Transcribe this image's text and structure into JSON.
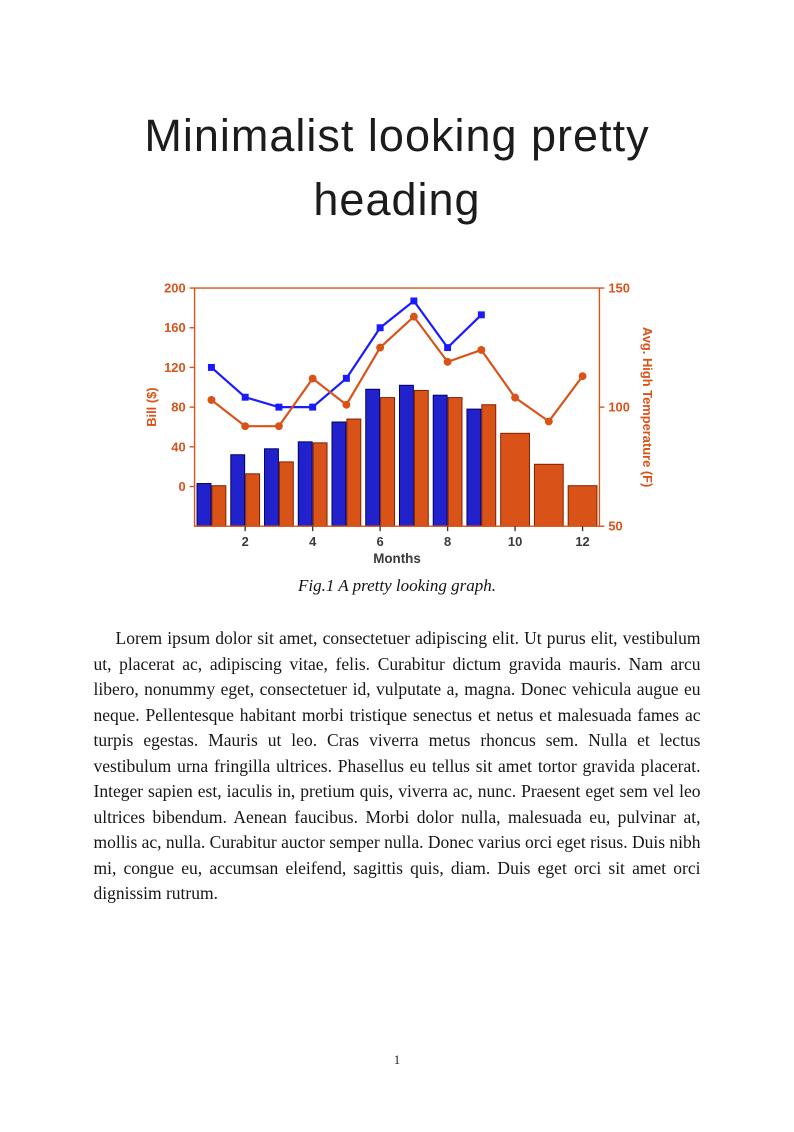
{
  "page": {
    "heading_line1": "Minimalist looking pretty",
    "heading_line2": "heading",
    "body": "Lorem ipsum dolor sit amet, consectetuer adipiscing elit. Ut purus elit, vestibulum ut, placerat ac, adipiscing vitae, felis. Curabitur dictum gravida mauris. Nam arcu libero, nonummy eget, consectetuer id, vulputate a, magna. Donec vehicula augue eu neque. Pellentesque habitant morbi tristique senectus et netus et malesuada fames ac turpis egestas. Mauris ut leo. Cras viverra metus rhoncus sem. Nulla et lectus vestibulum urna fringilla ultrices. Phasellus eu tellus sit amet tortor gravida placerat. Integer sapien est, iaculis in, pretium quis, viverra ac, nunc. Praesent eget sem vel leo ultrices bibendum. Aenean faucibus. Morbi dolor nulla, malesuada eu, pulvinar at, mollis ac, nulla. Curabitur auctor semper nulla. Donec varius orci eget risus. Duis nibh mi, congue eu, accumsan eleifend, sagittis quis, diam. Duis eget orci sit amet orci dignissim rutrum.",
    "page_number": "1"
  },
  "figure": {
    "caption": "Fig.1 A pretty looking graph."
  },
  "chart_data": {
    "type": "bar",
    "x": [
      1,
      2,
      3,
      4,
      5,
      6,
      7,
      8,
      9,
      10,
      11,
      12
    ],
    "xlabel": "Months",
    "xticks": [
      2,
      4,
      6,
      8,
      10,
      12
    ],
    "axes": {
      "left": {
        "label": "Bill ($)",
        "range": [
          -40,
          200
        ],
        "ticks": [
          0,
          40,
          80,
          120,
          160,
          200
        ],
        "color": "#d95319"
      },
      "right": {
        "label": "Avg. High Temperature (F)",
        "range": [
          50,
          150
        ],
        "ticks": [
          50,
          100,
          150
        ],
        "color": "#d95319"
      }
    },
    "series": [
      {
        "name": "bill-bars",
        "type": "bar",
        "axis": "left",
        "fill": "#2222cc",
        "stroke": "#000066",
        "values": [
          3,
          32,
          38,
          45,
          65,
          98,
          102,
          92,
          78,
          null,
          null,
          null
        ]
      },
      {
        "name": "temp-bars",
        "type": "bar",
        "axis": "right",
        "fill": "#d95319",
        "stroke": "#801f00",
        "values": [
          67,
          72,
          77,
          85,
          95,
          104,
          107,
          104,
          101,
          89,
          76,
          67
        ]
      },
      {
        "name": "bill-line",
        "type": "line",
        "axis": "left",
        "color": "#1a1aff",
        "marker": "square",
        "values": [
          120,
          90,
          80,
          80,
          109,
          160,
          187,
          140,
          173,
          null,
          null,
          null
        ]
      },
      {
        "name": "temp-line",
        "type": "line",
        "axis": "right",
        "color": "#d95319",
        "marker": "circle",
        "values": [
          103,
          92,
          92,
          112,
          101,
          125,
          138,
          119,
          124,
          104,
          94,
          113
        ]
      }
    ],
    "legend": "none",
    "grid": false
  }
}
